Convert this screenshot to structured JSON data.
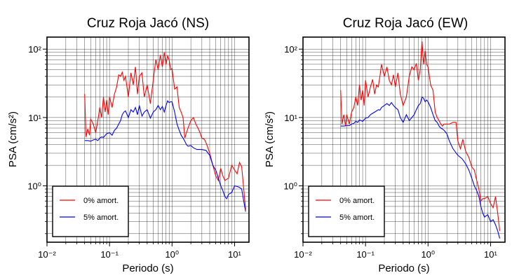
{
  "chart_data": [
    {
      "type": "line",
      "title": "Cruz Roja Jacó (NS)",
      "xlabel": "Periodo (s)",
      "ylabel": "PSA (cm/s²)",
      "x_scale": "log",
      "y_scale": "log",
      "xlim": [
        0.01,
        17
      ],
      "ylim": [
        0.15,
        150
      ],
      "x_tick_labels": [
        "10⁻²",
        "10⁻¹",
        "10⁰",
        "10¹"
      ],
      "y_tick_labels": [
        "10⁰",
        "10¹",
        "10²"
      ],
      "grid": true,
      "legend_position": "bottom-left",
      "series": [
        {
          "name": "0% amort.",
          "color": "#ff0000",
          "x": [
            0.04,
            0.042,
            0.045,
            0.048,
            0.05,
            0.055,
            0.06,
            0.065,
            0.07,
            0.075,
            0.08,
            0.085,
            0.09,
            0.095,
            0.1,
            0.11,
            0.12,
            0.13,
            0.14,
            0.15,
            0.16,
            0.17,
            0.18,
            0.2,
            0.22,
            0.24,
            0.26,
            0.28,
            0.3,
            0.33,
            0.36,
            0.4,
            0.45,
            0.5,
            0.55,
            0.6,
            0.65,
            0.7,
            0.75,
            0.8,
            0.85,
            0.9,
            0.95,
            1.0,
            1.1,
            1.2,
            1.3,
            1.4,
            1.5,
            1.6,
            1.7,
            1.8,
            2.0,
            2.2,
            2.4,
            2.6,
            2.8,
            3.0,
            3.3,
            3.6,
            4.0,
            4.5,
            5.0,
            5.5,
            6.0,
            6.5,
            7.0,
            7.5,
            8.0,
            9.0,
            10.0,
            11.0,
            12.0,
            13.0,
            14.0,
            15.0
          ],
          "y": [
            22,
            5.2,
            6.8,
            5.5,
            9.5,
            8,
            6,
            9,
            14,
            10,
            20,
            12,
            18,
            11,
            20,
            14,
            22,
            28,
            42,
            40,
            46,
            35,
            40,
            20,
            45,
            30,
            55,
            22,
            40,
            45,
            20,
            30,
            16,
            35,
            70,
            50,
            82,
            55,
            90,
            60,
            80,
            70,
            50,
            52,
            26,
            28,
            14,
            12,
            10,
            5,
            6,
            7,
            9,
            10,
            8,
            7,
            6,
            5,
            4.8,
            4,
            3,
            2,
            1.4,
            1.2,
            1.8,
            1.4,
            1.2,
            1.25,
            1.3,
            2,
            1.7,
            1.5,
            2.2,
            1.9,
            0.9,
            0.45
          ]
        },
        {
          "name": "5% amort.",
          "color": "#0000ff",
          "x": [
            0.04,
            0.045,
            0.05,
            0.055,
            0.06,
            0.065,
            0.07,
            0.075,
            0.08,
            0.09,
            0.1,
            0.11,
            0.12,
            0.13,
            0.14,
            0.15,
            0.16,
            0.17,
            0.18,
            0.2,
            0.22,
            0.24,
            0.26,
            0.28,
            0.3,
            0.33,
            0.36,
            0.4,
            0.45,
            0.5,
            0.55,
            0.6,
            0.65,
            0.7,
            0.75,
            0.8,
            0.85,
            0.9,
            0.95,
            1.0,
            1.1,
            1.2,
            1.3,
            1.4,
            1.5,
            1.6,
            1.7,
            1.8,
            2.0,
            2.2,
            2.5,
            3.0,
            3.5,
            4.0,
            4.5,
            5.0,
            5.5,
            6.0,
            6.5,
            7.0,
            7.5,
            8.0,
            9.0,
            10.0,
            11.0,
            12.0,
            13.0,
            14.0,
            15.0
          ],
          "y": [
            4.6,
            4.6,
            4.5,
            4.7,
            4.8,
            4.6,
            5,
            5.2,
            5.1,
            5.8,
            6,
            5.5,
            6.5,
            7,
            8,
            9,
            11,
            12,
            12.5,
            10,
            13,
            12,
            14,
            11,
            15,
            10.5,
            12,
            13,
            9.8,
            12,
            13,
            15,
            13,
            14.5,
            12,
            15,
            17.5,
            16.5,
            17,
            17,
            12,
            8,
            6.5,
            5.5,
            5,
            4.5,
            4,
            3.8,
            3.9,
            3.6,
            3.4,
            3.4,
            3.3,
            2.8,
            2.0,
            1.7,
            1.3,
            1.0,
            0.85,
            0.7,
            0.65,
            0.75,
            0.8,
            1,
            0.98,
            0.95,
            0.9,
            0.6,
            0.42
          ]
        }
      ]
    },
    {
      "type": "line",
      "title": "Cruz Roja Jacó (EW)",
      "xlabel": "Periodo (s)",
      "ylabel": "PSA (cm/s²)",
      "x_scale": "log",
      "y_scale": "log",
      "xlim": [
        0.01,
        17
      ],
      "ylim": [
        0.15,
        150
      ],
      "x_tick_labels": [
        "10⁻²",
        "10⁻¹",
        "10⁰",
        "10¹"
      ],
      "y_tick_labels": [
        "10⁰",
        "10¹",
        "10²"
      ],
      "grid": true,
      "legend_position": "bottom-left",
      "series": [
        {
          "name": "0% amort.",
          "color": "#ff0000",
          "x": [
            0.04,
            0.042,
            0.045,
            0.048,
            0.05,
            0.055,
            0.06,
            0.065,
            0.07,
            0.075,
            0.08,
            0.085,
            0.09,
            0.095,
            0.1,
            0.11,
            0.12,
            0.13,
            0.14,
            0.15,
            0.16,
            0.17,
            0.18,
            0.2,
            0.22,
            0.24,
            0.26,
            0.28,
            0.3,
            0.33,
            0.36,
            0.4,
            0.45,
            0.5,
            0.55,
            0.6,
            0.65,
            0.7,
            0.75,
            0.8,
            0.85,
            0.9,
            0.95,
            1.0,
            1.1,
            1.2,
            1.3,
            1.4,
            1.5,
            1.6,
            1.7,
            1.8,
            2.0,
            2.2,
            2.5,
            2.8,
            3.0,
            3.3,
            3.6,
            4.0,
            4.5,
            5.0,
            5.5,
            6.0,
            6.5,
            7.0,
            7.5,
            8.0,
            9.0,
            10.0,
            11.0,
            12.0,
            13.0,
            14.0
          ],
          "y": [
            25,
            8,
            11,
            7.5,
            11,
            8,
            12,
            14,
            20,
            15,
            30,
            18,
            25,
            15,
            35,
            20,
            28,
            36,
            22,
            30,
            28,
            40,
            60,
            40,
            55,
            35,
            30,
            42,
            28,
            45,
            22,
            15,
            20,
            40,
            55,
            50,
            62,
            35,
            50,
            130,
            60,
            95,
            60,
            55,
            30,
            25,
            12,
            10,
            9,
            8,
            7.5,
            8,
            8,
            8,
            8.5,
            8.5,
            4.5,
            3.5,
            4.8,
            3.2,
            2.6,
            1.9,
            1.7,
            1.2,
            0.9,
            0.6,
            0.65,
            0.65,
            0.7,
            0.55,
            0.48,
            0.7,
            0.4,
            0.22
          ]
        },
        {
          "name": "5% amort.",
          "color": "#0000ff",
          "x": [
            0.04,
            0.045,
            0.05,
            0.055,
            0.06,
            0.065,
            0.07,
            0.075,
            0.08,
            0.09,
            0.1,
            0.11,
            0.12,
            0.13,
            0.14,
            0.15,
            0.16,
            0.17,
            0.18,
            0.2,
            0.22,
            0.24,
            0.26,
            0.28,
            0.3,
            0.33,
            0.36,
            0.4,
            0.45,
            0.5,
            0.55,
            0.6,
            0.65,
            0.7,
            0.75,
            0.8,
            0.85,
            0.9,
            0.95,
            1.0,
            1.1,
            1.2,
            1.3,
            1.4,
            1.5,
            1.6,
            1.7,
            1.8,
            2.0,
            2.2,
            2.5,
            3.0,
            3.5,
            4.0,
            4.5,
            5.0,
            5.5,
            6.0,
            6.5,
            7.0,
            7.5,
            8.0,
            9.0,
            10.0,
            11.0,
            12.0,
            13.0,
            14.0
          ],
          "y": [
            7.5,
            7.5,
            7.6,
            7.6,
            8,
            8.2,
            8.8,
            8.5,
            9.2,
            8.8,
            9.8,
            10,
            11,
            11.5,
            12,
            12.5,
            13,
            12.8,
            14,
            15,
            16,
            15,
            16.5,
            15,
            14,
            13,
            10,
            8.5,
            11,
            9,
            10,
            11,
            13,
            15,
            16,
            20,
            19,
            17,
            18,
            17,
            14,
            11,
            9,
            8.5,
            7.5,
            7,
            6.8,
            6.5,
            5.8,
            4.5,
            3.5,
            2.8,
            2.5,
            2.1,
            1.7,
            1.3,
            1.0,
            0.85,
            0.7,
            0.5,
            0.4,
            0.35,
            0.38,
            0.3,
            0.32,
            0.27,
            0.22,
            0.17
          ]
        }
      ]
    }
  ]
}
